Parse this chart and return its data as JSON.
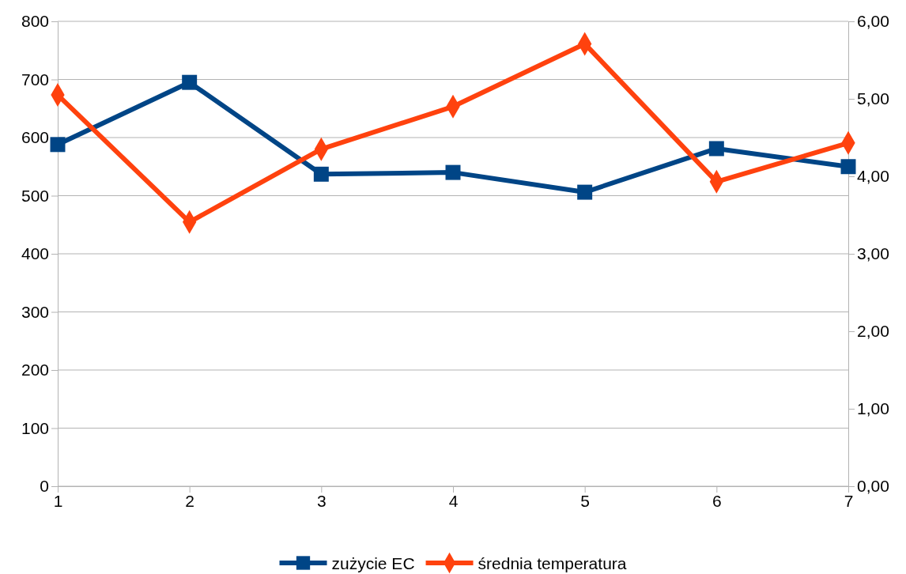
{
  "chart_data": {
    "type": "line",
    "x": [
      1,
      2,
      3,
      4,
      5,
      6,
      7
    ],
    "xlim": [
      1,
      7
    ],
    "xticks": [
      1,
      2,
      3,
      4,
      5,
      6,
      7
    ],
    "ylim": [
      0,
      800
    ],
    "yticks": [
      0,
      100,
      200,
      300,
      400,
      500,
      600,
      700,
      800
    ],
    "y2lim": [
      0,
      6
    ],
    "y2ticks": [
      {
        "value": 0,
        "label": "0,00"
      },
      {
        "value": 1,
        "label": "1,00"
      },
      {
        "value": 2,
        "label": "2,00"
      },
      {
        "value": 3,
        "label": "3,00"
      },
      {
        "value": 4,
        "label": "4,00"
      },
      {
        "value": 5,
        "label": "5,00"
      },
      {
        "value": 6,
        "label": "6,00"
      }
    ],
    "grid": "y",
    "legend": "bottom",
    "line_style": "solid",
    "series": [
      {
        "name": "zużycie EC",
        "color": "#004586",
        "marker": "square",
        "values": [
          588,
          695,
          537,
          540,
          506,
          581,
          550
        ]
      },
      {
        "name": "średnia temperatura",
        "color": "#ff420e",
        "marker": "diamond",
        "axis": "y2",
        "values": [
          5.05,
          3.41,
          4.35,
          4.9,
          5.71,
          3.93,
          4.43
        ]
      }
    ]
  }
}
